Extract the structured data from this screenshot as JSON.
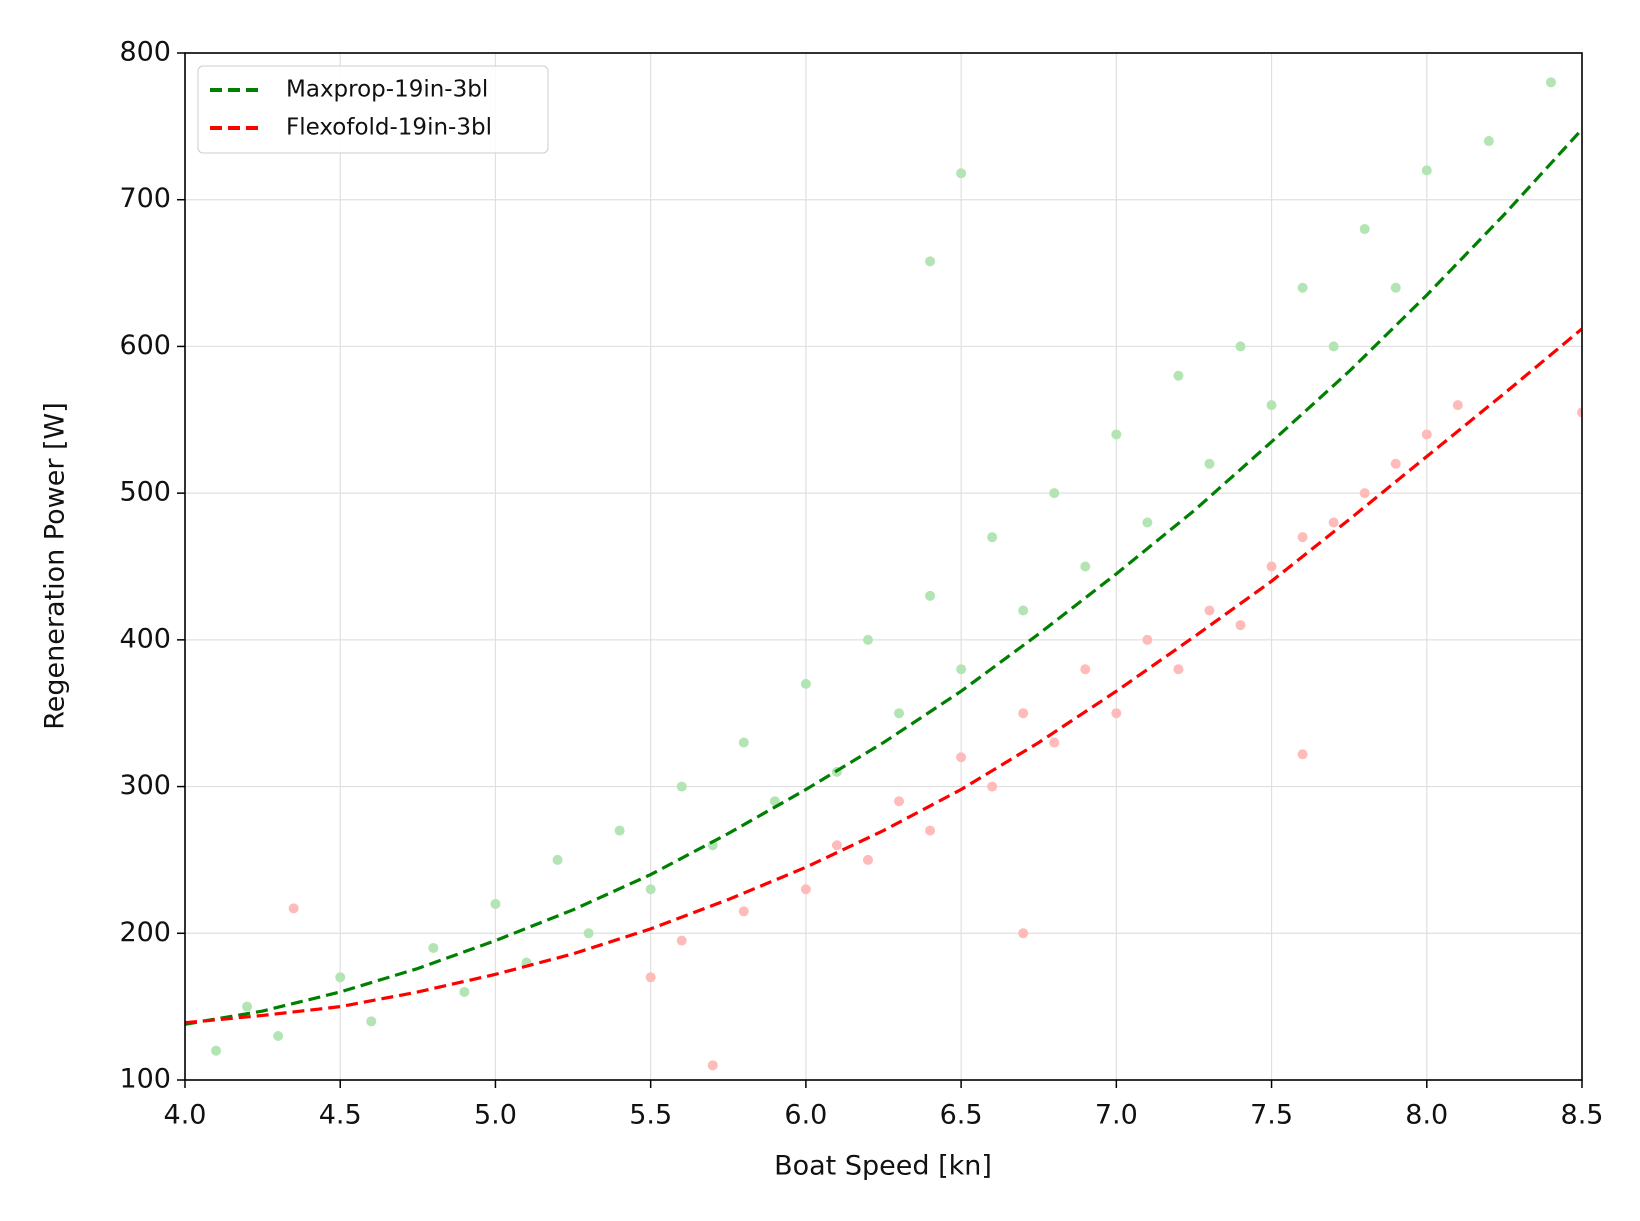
{
  "chart_data": {
    "type": "scatter",
    "xlabel": "Boat Speed [kn]",
    "ylabel": "Regeneration Power [W]",
    "xlim": [
      4.0,
      8.5
    ],
    "ylim": [
      100,
      800
    ],
    "xticks": [
      {
        "value": 4.0,
        "label": "4.0"
      },
      {
        "value": 4.5,
        "label": "4.5"
      },
      {
        "value": 5.0,
        "label": "5.0"
      },
      {
        "value": 5.5,
        "label": "5.5"
      },
      {
        "value": 6.0,
        "label": "6.0"
      },
      {
        "value": 6.5,
        "label": "6.5"
      },
      {
        "value": 7.0,
        "label": "7.0"
      },
      {
        "value": 7.5,
        "label": "7.5"
      },
      {
        "value": 8.0,
        "label": "8.0"
      },
      {
        "value": 8.5,
        "label": "8.5"
      }
    ],
    "yticks": [
      100,
      200,
      300,
      400,
      500,
      600,
      700,
      800
    ],
    "grid": true,
    "legend": "upper left",
    "scatter": [
      {
        "color": "#b3e4b3",
        "x": [
          4.1,
          4.2,
          4.3,
          4.5,
          4.6,
          4.8,
          4.9,
          5.0,
          5.1,
          5.2,
          5.3,
          5.4,
          5.5,
          5.6,
          5.7,
          5.8,
          5.9,
          6.0,
          6.1,
          6.2,
          6.3,
          6.4,
          6.5,
          6.6,
          6.7,
          6.8,
          6.9,
          7.0,
          7.1,
          7.2,
          7.3,
          7.4,
          7.5,
          7.6,
          7.7,
          7.8,
          7.9,
          8.0,
          8.2,
          8.4,
          6.5,
          6.4
        ],
        "y": [
          120,
          150,
          130,
          170,
          140,
          190,
          160,
          220,
          180,
          250,
          200,
          270,
          230,
          300,
          260,
          330,
          290,
          370,
          310,
          400,
          350,
          430,
          380,
          470,
          420,
          500,
          450,
          540,
          480,
          580,
          520,
          600,
          560,
          640,
          600,
          680,
          640,
          720,
          740,
          780,
          718,
          658
        ]
      },
      {
        "color": "#ffbaba",
        "x": [
          4.35,
          5.5,
          5.6,
          5.8,
          6.0,
          6.1,
          6.2,
          6.3,
          6.4,
          6.5,
          6.6,
          6.7,
          6.8,
          6.9,
          7.0,
          7.1,
          7.2,
          7.3,
          7.4,
          7.5,
          7.6,
          7.7,
          7.8,
          7.9,
          8.0,
          8.1,
          6.7,
          7.6,
          5.7,
          8.5
        ],
        "y": [
          217,
          170,
          195,
          215,
          230,
          260,
          250,
          290,
          270,
          320,
          300,
          350,
          330,
          380,
          350,
          400,
          380,
          420,
          410,
          450,
          470,
          480,
          500,
          520,
          540,
          560,
          200,
          322,
          110,
          555
        ]
      }
    ],
    "x": [
      4.0,
      4.25,
      4.5,
      4.75,
      5.0,
      5.25,
      5.5,
      5.75,
      6.0,
      6.25,
      6.5,
      6.75,
      7.0,
      7.25,
      7.5,
      7.75,
      8.0,
      8.25,
      8.5
    ],
    "series": [
      {
        "name": "Maxprop-19in-3bl",
        "color": "#008000",
        "values": [
          138,
          147,
          160,
          176,
          195,
          216,
          240,
          268,
          298,
          330,
          365,
          404,
          445,
          488,
          535,
          583,
          635,
          690,
          748
        ]
      },
      {
        "name": "Flexofold-19in-3bl",
        "color": "#ff0000",
        "values": [
          139,
          144,
          150,
          160,
          172,
          186,
          203,
          223,
          245,
          270,
          298,
          330,
          365,
          402,
          440,
          482,
          525,
          568,
          612
        ]
      }
    ]
  }
}
